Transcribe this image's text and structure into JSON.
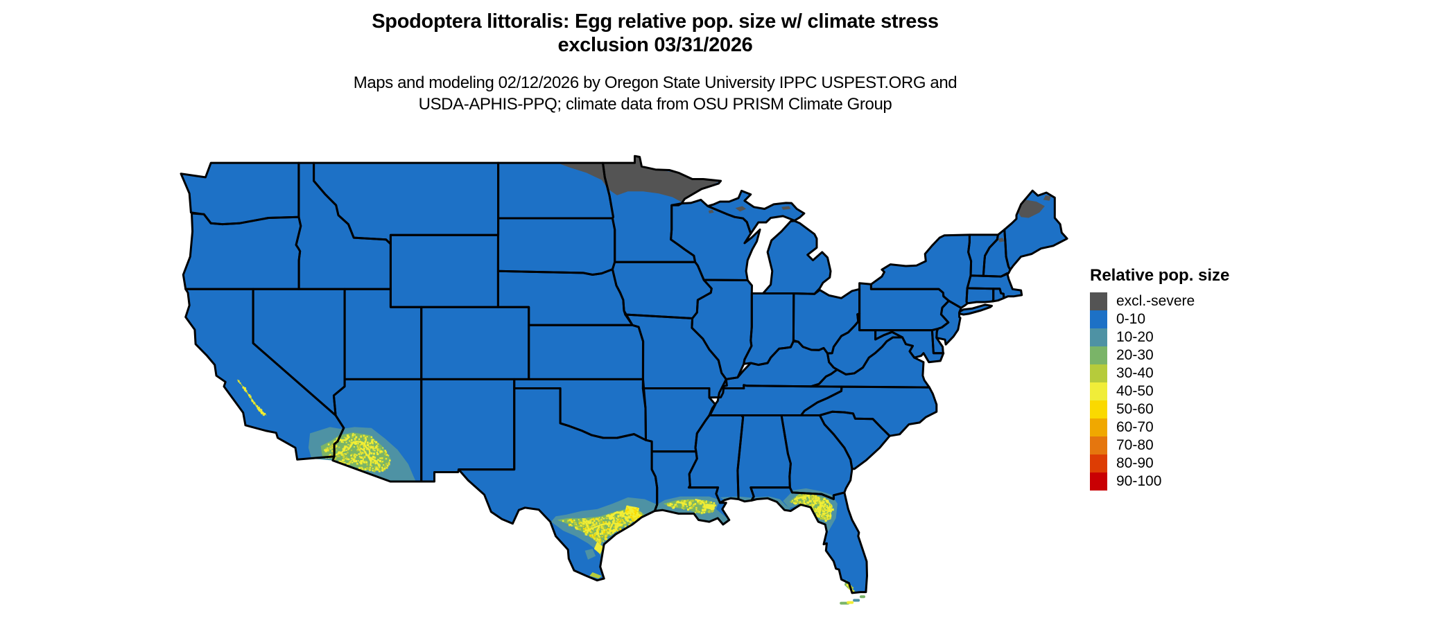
{
  "header": {
    "title_line1": "Spodoptera littoralis: Egg relative pop. size w/ climate stress",
    "title_line2": "exclusion 03/31/2026",
    "subtitle_line1": "Maps and modeling 02/12/2026 by Oregon State University IPPC USPEST.ORG and",
    "subtitle_line2": "USDA-APHIS-PPQ; climate data from OSU PRISM Climate Group"
  },
  "legend": {
    "title": "Relative pop. size",
    "items": [
      {
        "label": "excl.-severe",
        "color": "#545454"
      },
      {
        "label": "0-10",
        "color": "#1d71c6"
      },
      {
        "label": "10-20",
        "color": "#4e92a4"
      },
      {
        "label": "20-30",
        "color": "#7ab468"
      },
      {
        "label": "30-40",
        "color": "#b6cb3b"
      },
      {
        "label": "40-50",
        "color": "#f0ed39"
      },
      {
        "label": "50-60",
        "color": "#fad900"
      },
      {
        "label": "60-70",
        "color": "#f0a800"
      },
      {
        "label": "70-80",
        "color": "#e5760e"
      },
      {
        "label": "80-90",
        "color": "#dd3d04"
      },
      {
        "label": "90-100",
        "color": "#c90003"
      }
    ]
  },
  "map_colors": {
    "base_fill": "#1d71c6",
    "exclusion_fill": "#545454",
    "teal_fill": "#4e92a4",
    "green_fill": "#7ab468",
    "yellowgreen_fill": "#b6cb3b",
    "yellow_fill": "#f0ed39",
    "border": "#000000",
    "background": "#ffffff"
  },
  "chart_data": {
    "type": "choropleth_map",
    "title": "Spodoptera littoralis: Egg relative pop. size w/ climate stress exclusion 03/31/2026",
    "region": "Contiguous United States",
    "legend_title": "Relative pop. size",
    "legend_position": "right",
    "classes": [
      "excl.-severe",
      "0-10",
      "10-20",
      "20-30",
      "30-40",
      "40-50",
      "50-60",
      "60-70",
      "70-80",
      "80-90",
      "90-100"
    ],
    "class_colors": [
      "#545454",
      "#1d71c6",
      "#4e92a4",
      "#7ab468",
      "#b6cb3b",
      "#f0ed39",
      "#fad900",
      "#f0a800",
      "#e5760e",
      "#dd3d04",
      "#c90003"
    ],
    "observations": [
      {
        "area": "Most of the contiguous United States",
        "class": "0-10"
      },
      {
        "area": "Northern Minnesota and northeastern North Dakota",
        "class": "excl.-severe"
      },
      {
        "area": "North-central Maine (patches)",
        "class": "excl.-severe"
      },
      {
        "area": "Michigan Upper Peninsula and northern Wisconsin (small patches)",
        "class": "excl.-severe"
      },
      {
        "area": "White Mountains, northern New Hampshire (small patch)",
        "class": "excl.-severe"
      },
      {
        "area": "South-central Texas band and Gulf Coast (Del Rio to Houston)",
        "class": "10-60 mixed speckled"
      },
      {
        "area": "Southern Arizona and southeastern California deserts",
        "class": "10-50 mixed speckled"
      },
      {
        "area": "Coastal southern Louisiana incl. New Orleans area",
        "class": "10-50 mixed speckled"
      },
      {
        "area": "North-central Florida and panhandle coast",
        "class": "10-50 mixed speckled"
      },
      {
        "area": "Southern San Joaquin Valley, California (thin band)",
        "class": "20-40 mixed"
      },
      {
        "area": "Florida Keys and far south Florida (specks)",
        "class": "10-50 mixed"
      }
    ]
  }
}
